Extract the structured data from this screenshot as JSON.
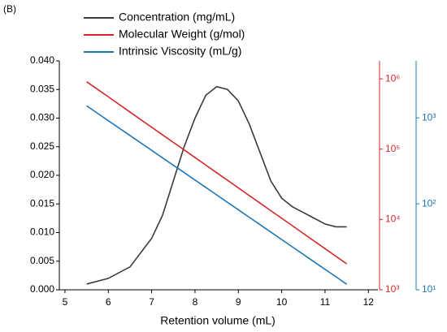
{
  "chart_data": {
    "type": "line",
    "panel_label": "(B)",
    "xlabel": "Retention volume (mL)",
    "x": [
      5.5,
      6,
      6.5,
      7,
      7.25,
      7.5,
      7.75,
      8,
      8.25,
      8.5,
      8.75,
      9,
      9.25,
      9.5,
      9.75,
      10,
      10.25,
      10.5,
      10.75,
      11,
      11.25,
      11.5
    ],
    "xlim": [
      4.87,
      12.22
    ],
    "xticks": [
      5,
      6,
      7,
      8,
      9,
      10,
      11,
      12
    ],
    "ylim": [
      0,
      0.04
    ],
    "yticks": [
      {
        "value": 0,
        "label": "0.000"
      },
      {
        "value": 0.005,
        "label": "0.005"
      },
      {
        "value": 0.01,
        "label": "0.010"
      },
      {
        "value": 0.015,
        "label": "0.015"
      },
      {
        "value": 0.02,
        "label": "0.020"
      },
      {
        "value": 0.025,
        "label": "0.025"
      },
      {
        "value": 0.03,
        "label": "0.030"
      },
      {
        "value": 0.035,
        "label": "0.035"
      },
      {
        "value": 0.04,
        "label": "0.040"
      }
    ],
    "y2lim": [
      1000,
      1800000
    ],
    "y2log": true,
    "y2color": "#d62728",
    "y2ticks": [
      {
        "value": 1000,
        "label": "10³"
      },
      {
        "value": 10000,
        "label": "10⁴"
      },
      {
        "value": 100000,
        "label": "10⁵"
      },
      {
        "value": 1000000,
        "label": "10⁶"
      }
    ],
    "y3lim": [
      10,
      4600
    ],
    "y3log": true,
    "y3color": "#1f77b4",
    "y3ticks": [
      {
        "value": 10,
        "label": "10¹"
      },
      {
        "value": 100,
        "label": "10²"
      },
      {
        "value": 1000,
        "label": "10³"
      }
    ],
    "series": [
      {
        "name": "Concentration (mg/mL)",
        "color": "#3a3a3a",
        "axis": "y",
        "values": [
          0.001,
          0.002,
          0.004,
          0.009,
          0.013,
          0.019,
          0.025,
          0.03,
          0.034,
          0.0355,
          0.035,
          0.033,
          0.029,
          0.024,
          0.019,
          0.016,
          0.0145,
          0.0135,
          0.0125,
          0.0115,
          0.011,
          0.011
        ]
      },
      {
        "name": "Molecular Weight (g/mol)",
        "color": "#d62728",
        "axis": "y2",
        "values": [
          910000,
          555000,
          337000,
          205000,
          160000,
          125000,
          97500,
          76000,
          59300,
          46200,
          36100,
          28100,
          21900,
          17100,
          13300,
          10400,
          8110,
          6320,
          4930,
          3850,
          3000,
          2340
        ]
      },
      {
        "name": "Intrinsic Viscosity (mL/g)",
        "color": "#1f77b4",
        "axis": "y3",
        "values": [
          1380,
          927,
          623,
          419,
          343,
          281,
          231,
          189,
          155,
          127,
          104,
          85.2,
          69.8,
          57.2,
          46.9,
          38.4,
          31.5,
          25.8,
          21.1,
          17.3,
          14.2,
          11.6
        ]
      }
    ]
  }
}
